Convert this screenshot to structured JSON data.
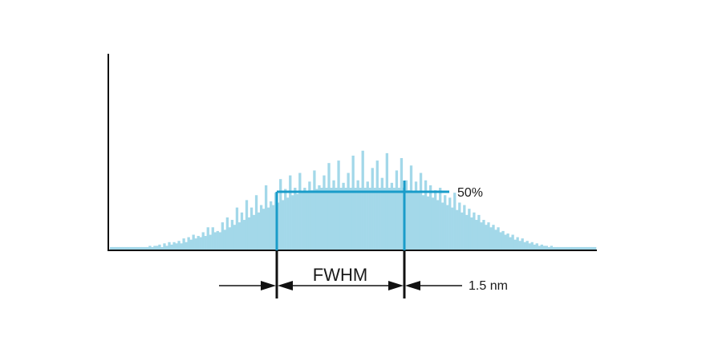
{
  "labels": {
    "fwhm": "FWHM",
    "half_max": "50%",
    "bandwidth": "1.5 nm"
  },
  "colors": {
    "histogram_fill": "#a3d8e9",
    "half_max_line": "#1a9cc9",
    "axis": "#111111",
    "annotation": "#111111"
  },
  "chart_data": {
    "type": "bar",
    "description_of_shape": "",
    "peak_fraction_at_half_max": 0.5,
    "values": [
      0.02,
      0.02,
      0.02,
      0.02,
      0.02,
      0.02,
      0.02,
      0.02,
      0.02,
      0.02,
      0.02,
      0.02,
      0.02,
      0.02,
      0.02,
      0.02,
      0.03,
      0.02,
      0.03,
      0.03,
      0.04,
      0.02,
      0.05,
      0.03,
      0.06,
      0.04,
      0.06,
      0.05,
      0.07,
      0.05,
      0.09,
      0.06,
      0.1,
      0.08,
      0.12,
      0.09,
      0.11,
      0.1,
      0.14,
      0.11,
      0.18,
      0.12,
      0.18,
      0.14,
      0.15,
      0.14,
      0.22,
      0.16,
      0.26,
      0.18,
      0.24,
      0.2,
      0.34,
      0.22,
      0.3,
      0.24,
      0.4,
      0.26,
      0.34,
      0.28,
      0.44,
      0.3,
      0.36,
      0.33,
      0.52,
      0.34,
      0.39,
      0.36,
      0.46,
      0.38,
      0.57,
      0.4,
      0.49,
      0.42,
      0.6,
      0.44,
      0.5,
      0.45,
      0.62,
      0.46,
      0.5,
      0.47,
      0.55,
      0.48,
      0.64,
      0.49,
      0.52,
      0.5,
      0.6,
      0.5,
      0.7,
      0.5,
      0.56,
      0.5,
      0.72,
      0.5,
      0.54,
      0.5,
      0.62,
      0.5,
      0.76,
      0.5,
      0.56,
      0.5,
      0.8,
      0.5,
      0.55,
      0.5,
      0.66,
      0.5,
      0.72,
      0.5,
      0.58,
      0.5,
      0.78,
      0.5,
      0.54,
      0.5,
      0.64,
      0.5,
      0.74,
      0.5,
      0.56,
      0.48,
      0.68,
      0.47,
      0.55,
      0.46,
      0.62,
      0.44,
      0.56,
      0.43,
      0.52,
      0.42,
      0.48,
      0.4,
      0.5,
      0.38,
      0.44,
      0.36,
      0.42,
      0.34,
      0.46,
      0.32,
      0.38,
      0.3,
      0.36,
      0.28,
      0.33,
      0.26,
      0.3,
      0.24,
      0.28,
      0.22,
      0.24,
      0.2,
      0.22,
      0.18,
      0.2,
      0.16,
      0.18,
      0.14,
      0.15,
      0.12,
      0.13,
      0.1,
      0.12,
      0.08,
      0.1,
      0.07,
      0.09,
      0.06,
      0.07,
      0.05,
      0.06,
      0.04,
      0.05,
      0.03,
      0.04,
      0.03,
      0.03,
      0.02,
      0.03,
      0.02,
      0.02,
      0.02,
      0.02,
      0.02,
      0.02,
      0.02,
      0.02,
      0.02,
      0.02,
      0.02,
      0.02,
      0.02,
      0.02,
      0.02,
      0.02,
      0.02,
      0.02
    ]
  }
}
